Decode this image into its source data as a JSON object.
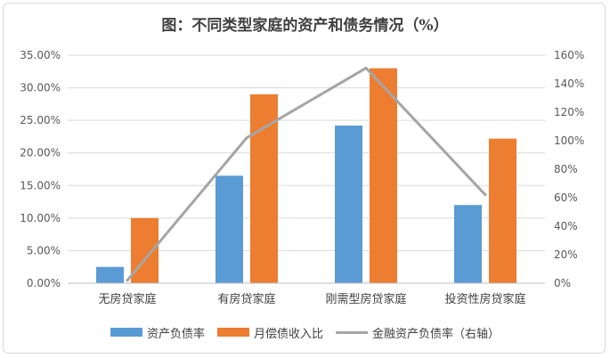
{
  "chart_data": {
    "type": "bar",
    "title": "图：不同类型家庭的资产和债务情况（%）",
    "categories": [
      "无房贷家庭",
      "有房贷家庭",
      "刚需型房贷家庭",
      "投资性房贷家庭"
    ],
    "series": [
      {
        "name": "资产负债率",
        "type": "bar",
        "axis": "left",
        "color": "#5b9bd5",
        "values": [
          0.025,
          0.165,
          0.242,
          0.12
        ]
      },
      {
        "name": "月偿债收入比",
        "type": "bar",
        "axis": "left",
        "color": "#ed7d31",
        "values": [
          0.1,
          0.29,
          0.33,
          0.222
        ]
      },
      {
        "name": "金融资产负债率（右轴）",
        "type": "line",
        "axis": "right",
        "color": "#a5a5a5",
        "values": [
          0.02,
          1.02,
          1.51,
          0.62
        ]
      }
    ],
    "y_left": {
      "min": 0,
      "max": 0.35,
      "step": 0.05,
      "tick_labels": [
        "0.00%",
        "5.00%",
        "10.00%",
        "15.00%",
        "20.00%",
        "25.00%",
        "30.00%",
        "35.00%"
      ]
    },
    "y_right": {
      "min": 0,
      "max": 1.6,
      "step": 0.2,
      "tick_labels": [
        "0%",
        "20%",
        "40%",
        "60%",
        "80%",
        "100%",
        "120%",
        "140%",
        "160%"
      ]
    },
    "grid": true,
    "legend_position": "bottom"
  }
}
